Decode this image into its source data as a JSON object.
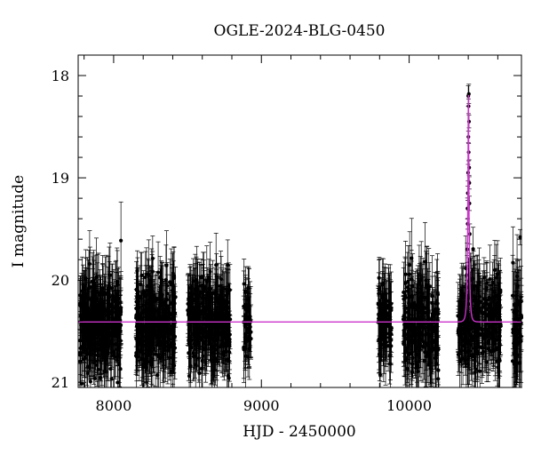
{
  "chart_data": {
    "type": "scatter",
    "title": "OGLE-2024-BLG-0450",
    "xlabel": "HJD - 2450000",
    "ylabel": "I magnitude",
    "xlim": [
      7760,
      10760
    ],
    "ylim": [
      21.05,
      17.8
    ],
    "y_inverted": true,
    "grid": false,
    "x_ticks": [
      8000,
      9000,
      10000
    ],
    "y_ticks": [
      18,
      19,
      20,
      21
    ],
    "x_tick_labels": [
      "8000",
      "9000",
      "10000"
    ],
    "y_tick_labels": [
      "18",
      "19",
      "20",
      "21"
    ],
    "baseline_mag": 20.41,
    "series": [
      {
        "type": "scatter_errorbars",
        "color": "#000000",
        "seasons": [
          {
            "x_range": [
              7770,
              8050
            ],
            "n": 340,
            "mag_mean": 20.42,
            "mag_scatter": 0.22,
            "err_mean": 0.28
          },
          {
            "x_range": [
              8150,
              8420
            ],
            "n": 320,
            "mag_mean": 20.42,
            "mag_scatter": 0.21,
            "err_mean": 0.26
          },
          {
            "x_range": [
              8500,
              8790
            ],
            "n": 340,
            "mag_mean": 20.41,
            "mag_scatter": 0.21,
            "err_mean": 0.26
          },
          {
            "x_range": [
              8880,
              8930
            ],
            "n": 50,
            "mag_mean": 20.42,
            "mag_scatter": 0.2,
            "err_mean": 0.25
          },
          {
            "x_range": [
              9790,
              9880
            ],
            "n": 90,
            "mag_mean": 20.42,
            "mag_scatter": 0.22,
            "err_mean": 0.28
          },
          {
            "x_range": [
              9960,
              10200
            ],
            "n": 230,
            "mag_mean": 20.43,
            "mag_scatter": 0.23,
            "err_mean": 0.29
          },
          {
            "x_range": [
              10330,
              10620
            ],
            "n": 300,
            "mag_mean": 20.41,
            "mag_scatter": 0.21,
            "err_mean": 0.27
          },
          {
            "x_range": [
              10700,
              10760
            ],
            "n": 60,
            "mag_mean": 20.45,
            "mag_scatter": 0.24,
            "err_mean": 0.3
          }
        ],
        "points": [
          {
            "x": 10400,
            "y": 18.2
          },
          {
            "x": 10402,
            "y": 18.3
          },
          {
            "x": 10404,
            "y": 18.18
          },
          {
            "x": 10401,
            "y": 18.6
          },
          {
            "x": 10399,
            "y": 18.95
          },
          {
            "x": 10397,
            "y": 19.15
          },
          {
            "x": 10395,
            "y": 19.3
          },
          {
            "x": 10406,
            "y": 18.9
          },
          {
            "x": 10408,
            "y": 19.25
          },
          {
            "x": 10405,
            "y": 18.45
          },
          {
            "x": 10396,
            "y": 19.45
          },
          {
            "x": 10410,
            "y": 19.55
          },
          {
            "x": 10393,
            "y": 19.7
          },
          {
            "x": 10412,
            "y": 19.8
          },
          {
            "x": 10390,
            "y": 19.95
          },
          {
            "x": 10415,
            "y": 20.0
          },
          {
            "x": 10403,
            "y": 18.75
          },
          {
            "x": 10407,
            "y": 19.05
          },
          {
            "x": 10751,
            "y": 19.58
          }
        ]
      },
      {
        "type": "model",
        "color": "#cc33cc",
        "baseline": 20.41,
        "peak_x": 10401,
        "peak_mag": 18.12,
        "tE": 11
      }
    ]
  }
}
